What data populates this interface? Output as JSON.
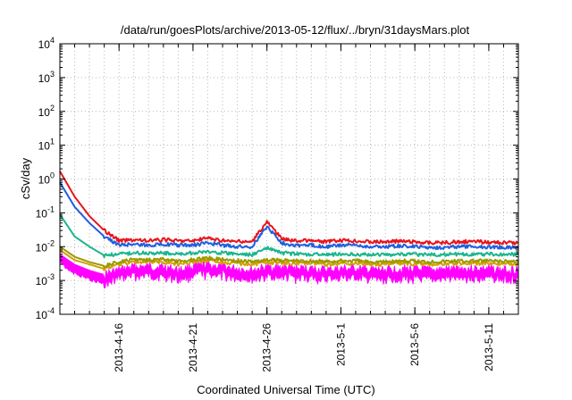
{
  "chart_data": {
    "type": "line",
    "title": "/data/run/goesPlots/archive/2013-05-12/flux/../bryn/31daysMars.plot",
    "xlabel": "Coordinated Universal Time (UTC)",
    "ylabel": "cSv/day",
    "yscale": "log",
    "ylim": [
      0.0001,
      10000
    ],
    "xlim": [
      "2013-04-12",
      "2013-05-13"
    ],
    "grid": true,
    "y_ticks": [
      {
        "value": 0.0001,
        "base": "10",
        "exp": "-4"
      },
      {
        "value": 0.001,
        "base": "10",
        "exp": "-3"
      },
      {
        "value": 0.01,
        "base": "10",
        "exp": "-2"
      },
      {
        "value": 0.1,
        "base": "10",
        "exp": "-1"
      },
      {
        "value": 1,
        "base": "10",
        "exp": "0"
      },
      {
        "value": 10,
        "base": "10",
        "exp": "1"
      },
      {
        "value": 100,
        "base": "10",
        "exp": "2"
      },
      {
        "value": 1000,
        "base": "10",
        "exp": "3"
      },
      {
        "value": 10000,
        "base": "10",
        "exp": "4"
      }
    ],
    "x_ticks": [
      {
        "value": "2013-04-16",
        "label": "2013-4-16"
      },
      {
        "value": "2013-04-21",
        "label": "2013-4-21"
      },
      {
        "value": "2013-04-26",
        "label": "2013-4-26"
      },
      {
        "value": "2013-05-01",
        "label": "2013-5-1"
      },
      {
        "value": "2013-05-06",
        "label": "2013-5-6"
      },
      {
        "value": "2013-05-11",
        "label": "2013-5-11"
      }
    ],
    "series": [
      {
        "color": "#ff00ff",
        "fill": true,
        "x": [
          "2013-04-12",
          "2013-04-13",
          "2013-04-14",
          "2013-04-15",
          "2013-04-16",
          "2013-04-17",
          "2013-04-18",
          "2013-04-19",
          "2013-04-20",
          "2013-04-21",
          "2013-04-22",
          "2013-04-23",
          "2013-04-24",
          "2013-04-25",
          "2013-04-26",
          "2013-04-27",
          "2013-04-28",
          "2013-04-29",
          "2013-04-30",
          "2013-05-01",
          "2013-05-02",
          "2013-05-03",
          "2013-05-04",
          "2013-05-05",
          "2013-05-06",
          "2013-05-07",
          "2013-05-08",
          "2013-05-09",
          "2013-05-10",
          "2013-05-11",
          "2013-05-12",
          "2013-05-13"
        ],
        "values": [
          0.006,
          0.003,
          0.002,
          0.0015,
          0.002,
          0.0025,
          0.0025,
          0.0025,
          0.002,
          0.0025,
          0.0028,
          0.0025,
          0.0022,
          0.002,
          0.0024,
          0.0024,
          0.0022,
          0.0022,
          0.002,
          0.0022,
          0.0022,
          0.002,
          0.002,
          0.0022,
          0.0021,
          0.002,
          0.0021,
          0.0022,
          0.0022,
          0.0022,
          0.002,
          0.0022
        ]
      },
      {
        "color": "#d4a000",
        "x": [
          "2013-04-12",
          "2013-04-13",
          "2013-04-14",
          "2013-04-15",
          "2013-04-16",
          "2013-04-17",
          "2013-04-18",
          "2013-04-19",
          "2013-04-20",
          "2013-04-21",
          "2013-04-22",
          "2013-04-23",
          "2013-04-24",
          "2013-04-25",
          "2013-04-26",
          "2013-04-27",
          "2013-04-28",
          "2013-04-29",
          "2013-04-30",
          "2013-05-01",
          "2013-05-02",
          "2013-05-03",
          "2013-05-04",
          "2013-05-05",
          "2013-05-06",
          "2013-05-07",
          "2013-05-08",
          "2013-05-09",
          "2013-05-10",
          "2013-05-11",
          "2013-05-12",
          "2013-05-13"
        ],
        "values": [
          0.008,
          0.004,
          0.003,
          0.0022,
          0.003,
          0.0035,
          0.0035,
          0.0035,
          0.003,
          0.0035,
          0.0038,
          0.0035,
          0.0032,
          0.003,
          0.0034,
          0.0033,
          0.0032,
          0.0032,
          0.003,
          0.0032,
          0.0032,
          0.003,
          0.003,
          0.0032,
          0.0031,
          0.003,
          0.0031,
          0.0032,
          0.0032,
          0.0032,
          0.003,
          0.0032
        ]
      },
      {
        "color": "#9a9a00",
        "x": [
          "2013-04-12",
          "2013-04-13",
          "2013-04-14",
          "2013-04-15",
          "2013-04-16",
          "2013-04-17",
          "2013-04-18",
          "2013-04-19",
          "2013-04-20",
          "2013-04-21",
          "2013-04-22",
          "2013-04-23",
          "2013-04-24",
          "2013-04-25",
          "2013-04-26",
          "2013-04-27",
          "2013-04-28",
          "2013-04-29",
          "2013-04-30",
          "2013-05-01",
          "2013-05-02",
          "2013-05-03",
          "2013-05-04",
          "2013-05-05",
          "2013-05-06",
          "2013-05-07",
          "2013-05-08",
          "2013-05-09",
          "2013-05-10",
          "2013-05-11",
          "2013-05-12",
          "2013-05-13"
        ],
        "values": [
          0.01,
          0.005,
          0.0035,
          0.0027,
          0.0035,
          0.0042,
          0.0042,
          0.0042,
          0.0036,
          0.0042,
          0.0046,
          0.0042,
          0.0038,
          0.0036,
          0.004,
          0.004,
          0.0038,
          0.0038,
          0.0036,
          0.0038,
          0.0038,
          0.0036,
          0.0036,
          0.0038,
          0.0037,
          0.0036,
          0.0037,
          0.0038,
          0.0038,
          0.0038,
          0.0036,
          0.0038
        ]
      },
      {
        "color": "#1bb58f",
        "x": [
          "2013-04-12",
          "2013-04-13",
          "2013-04-14",
          "2013-04-15",
          "2013-04-16",
          "2013-04-17",
          "2013-04-18",
          "2013-04-19",
          "2013-04-20",
          "2013-04-21",
          "2013-04-22",
          "2013-04-23",
          "2013-04-24",
          "2013-04-25",
          "2013-04-26",
          "2013-04-27",
          "2013-04-28",
          "2013-04-29",
          "2013-04-30",
          "2013-05-01",
          "2013-05-02",
          "2013-05-03",
          "2013-05-04",
          "2013-05-05",
          "2013-05-06",
          "2013-05-07",
          "2013-05-08",
          "2013-05-09",
          "2013-05-10",
          "2013-05-11",
          "2013-05-12",
          "2013-05-13"
        ],
        "values": [
          0.09,
          0.02,
          0.01,
          0.0055,
          0.006,
          0.0065,
          0.0065,
          0.0065,
          0.006,
          0.0065,
          0.007,
          0.0065,
          0.006,
          0.0058,
          0.009,
          0.0065,
          0.006,
          0.006,
          0.0058,
          0.006,
          0.006,
          0.0058,
          0.0058,
          0.006,
          0.0059,
          0.0058,
          0.0059,
          0.006,
          0.006,
          0.006,
          0.0058,
          0.006
        ]
      },
      {
        "color": "#1f5fe0",
        "x": [
          "2013-04-12",
          "2013-04-13",
          "2013-04-14",
          "2013-04-15",
          "2013-04-16",
          "2013-04-17",
          "2013-04-18",
          "2013-04-19",
          "2013-04-20",
          "2013-04-21",
          "2013-04-22",
          "2013-04-23",
          "2013-04-24",
          "2013-04-25",
          "2013-04-26",
          "2013-04-27",
          "2013-04-28",
          "2013-04-29",
          "2013-04-30",
          "2013-05-01",
          "2013-05-02",
          "2013-05-03",
          "2013-05-04",
          "2013-05-05",
          "2013-05-06",
          "2013-05-07",
          "2013-05-08",
          "2013-05-09",
          "2013-05-10",
          "2013-05-11",
          "2013-05-12",
          "2013-05-13"
        ],
        "values": [
          0.8,
          0.15,
          0.05,
          0.02,
          0.011,
          0.012,
          0.011,
          0.012,
          0.011,
          0.011,
          0.013,
          0.011,
          0.01,
          0.01,
          0.04,
          0.013,
          0.011,
          0.011,
          0.01,
          0.011,
          0.011,
          0.01,
          0.01,
          0.0105,
          0.01,
          0.0095,
          0.0095,
          0.01,
          0.01,
          0.0098,
          0.0095,
          0.0095
        ]
      },
      {
        "color": "#e8141c",
        "x": [
          "2013-04-12",
          "2013-04-13",
          "2013-04-14",
          "2013-04-15",
          "2013-04-16",
          "2013-04-17",
          "2013-04-18",
          "2013-04-19",
          "2013-04-20",
          "2013-04-21",
          "2013-04-22",
          "2013-04-23",
          "2013-04-24",
          "2013-04-25",
          "2013-04-26",
          "2013-04-27",
          "2013-04-28",
          "2013-04-29",
          "2013-04-30",
          "2013-05-01",
          "2013-05-02",
          "2013-05-03",
          "2013-05-04",
          "2013-05-05",
          "2013-05-06",
          "2013-05-07",
          "2013-05-08",
          "2013-05-09",
          "2013-05-10",
          "2013-05-11",
          "2013-05-12",
          "2013-05-13"
        ],
        "values": [
          1.7,
          0.3,
          0.08,
          0.03,
          0.015,
          0.016,
          0.015,
          0.016,
          0.015,
          0.015,
          0.018,
          0.015,
          0.014,
          0.014,
          0.055,
          0.017,
          0.015,
          0.015,
          0.014,
          0.015,
          0.015,
          0.014,
          0.014,
          0.0145,
          0.014,
          0.013,
          0.013,
          0.014,
          0.014,
          0.0135,
          0.013,
          0.013
        ]
      }
    ]
  }
}
